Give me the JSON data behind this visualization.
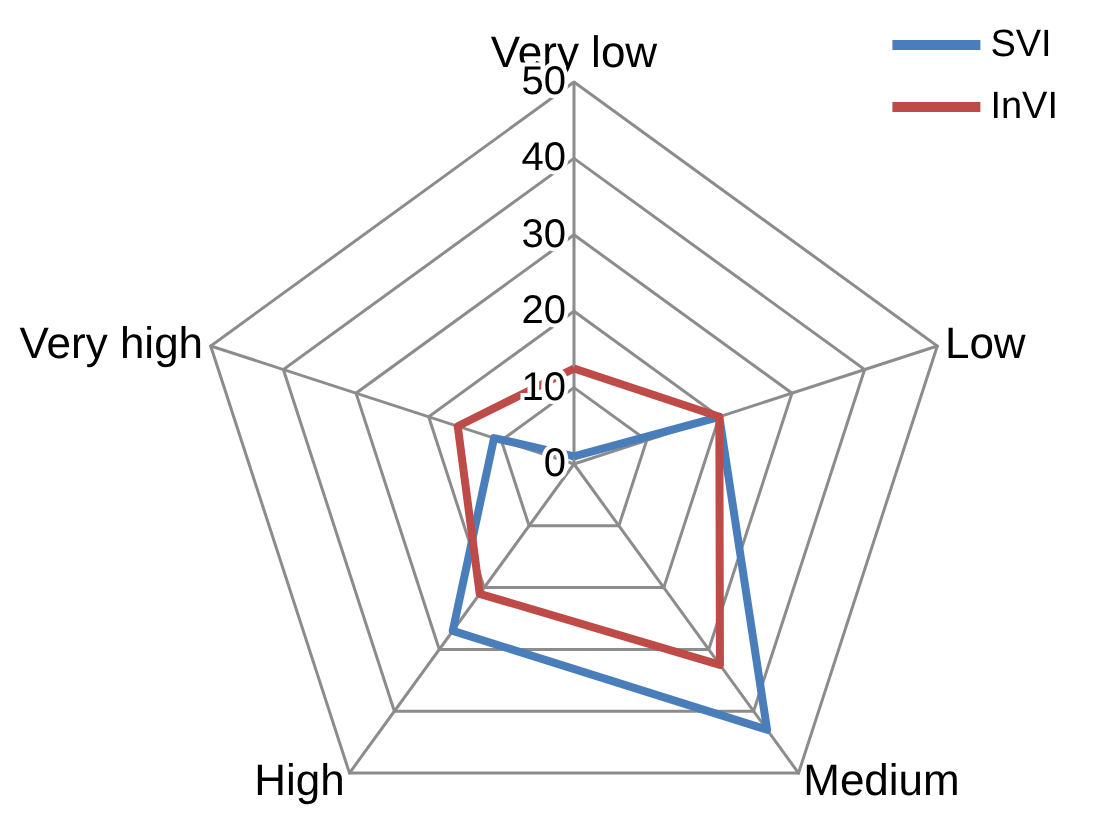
{
  "chart_data": {
    "type": "radar",
    "categories": [
      "Very low",
      "Low",
      "Medium",
      "High",
      "Very high"
    ],
    "series": [
      {
        "name": "SVI",
        "color": "#4a7ebb",
        "values": [
          1,
          20,
          43,
          27,
          11
        ]
      },
      {
        "name": "InVI",
        "color": "#be4b48",
        "values": [
          12.5,
          20,
          32.5,
          21,
          16
        ]
      }
    ],
    "ylim": [
      0,
      50
    ],
    "yticks": [
      0,
      10,
      20,
      30,
      40,
      50
    ],
    "grid": true,
    "legend": "top right",
    "marker": "none",
    "line_style": "solid"
  }
}
